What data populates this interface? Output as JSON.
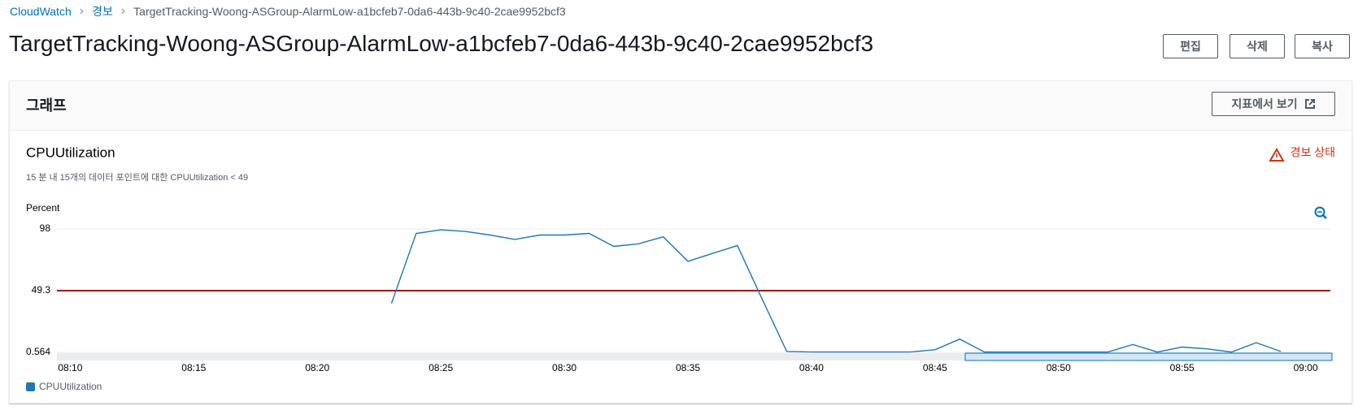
{
  "breadcrumb": [
    "CloudWatch",
    "경보",
    "TargetTracking-Woong-ASGroup-AlarmLow-a1bcfeb7-0da6-443b-9c40-2cae9952bcf3"
  ],
  "title": "TargetTracking-Woong-ASGroup-AlarmLow-a1bcfeb7-0da6-443b-9c40-2cae9952bcf3",
  "buttons": [
    "편집",
    "삭제",
    "복사"
  ],
  "panel": {
    "title": "그래프",
    "button": "지표에서 보기"
  },
  "chart_data": {
    "type": "line",
    "title": "CPUUtilization",
    "subtitle": "15 분 내 15개의 데이터 포인트에 대한 CPUUtilization < 49",
    "status": "경보 상태",
    "y_label": "Percent",
    "x": [
      "08:23",
      "08:24",
      "08:25",
      "08:26",
      "08:27",
      "08:28",
      "08:29",
      "08:30",
      "08:31",
      "08:32",
      "08:33",
      "08:34",
      "08:35",
      "08:36",
      "08:37",
      "08:38",
      "08:39",
      "08:40",
      "08:41",
      "08:42",
      "08:43",
      "08:44",
      "08:45",
      "08:46",
      "08:47",
      "08:48",
      "08:49",
      "08:50",
      "08:51",
      "08:52",
      "08:53",
      "08:54",
      "08:55",
      "08:56",
      "08:57",
      "08:58",
      "08:59"
    ],
    "series": [
      {
        "name": "CPUUtilization",
        "color": "#1f77b4",
        "values": [
          39.3,
          94.5,
          97.3,
          96,
          93.2,
          89.7,
          93.2,
          93.2,
          94.5,
          84.2,
          86.3,
          91.8,
          72.4,
          78.7,
          84.9,
          42.7,
          1.3,
          0.8,
          0.8,
          0.8,
          0.8,
          0.8,
          2.6,
          11,
          0.8,
          0.8,
          0.8,
          0.8,
          0.8,
          0.8,
          6.8,
          0.8,
          4.7,
          3.3,
          0.8,
          8.2,
          1.3
        ]
      }
    ],
    "threshold": 49.3,
    "threshold_color": "#a31515",
    "xlim": [
      "08:09",
      "09:01"
    ],
    "xticks": [
      "08:10",
      "08:15",
      "08:20",
      "08:25",
      "08:30",
      "08:35",
      "08:40",
      "08:45",
      "08:50",
      "08:55",
      "09:00"
    ],
    "ylim": [
      0.564,
      98
    ],
    "yticks": [
      0.564,
      49.3,
      98
    ],
    "grid": true
  }
}
